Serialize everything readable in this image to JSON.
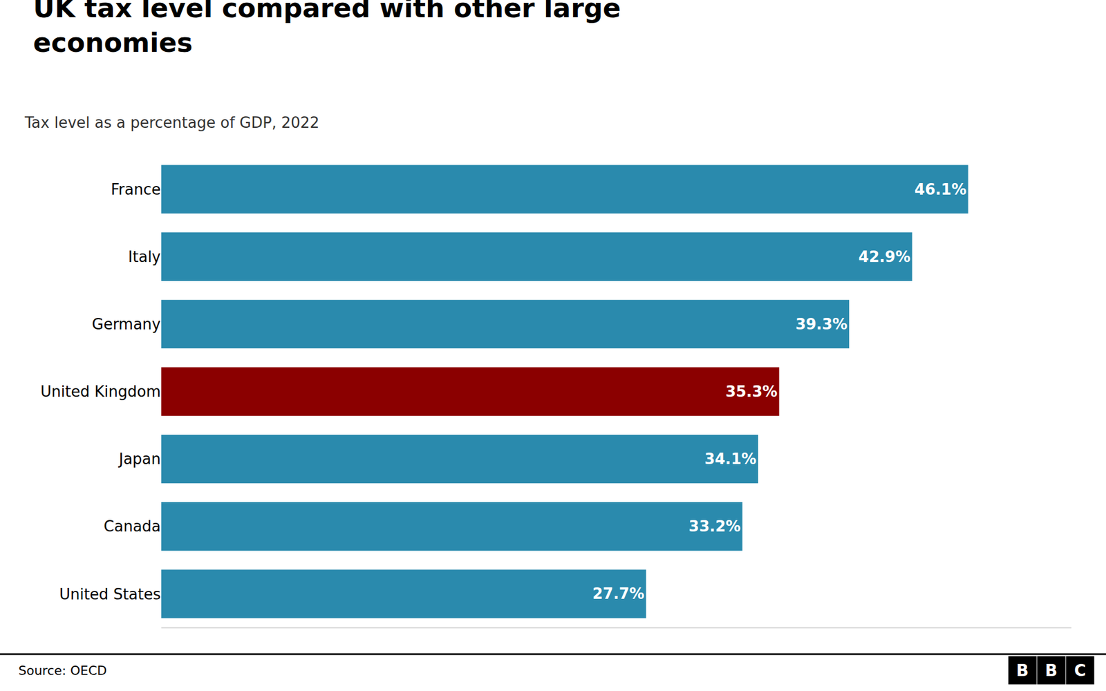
{
  "chart_data": {
    "type": "bar",
    "orientation": "horizontal",
    "title": "UK tax level compared with other large\neconomies",
    "subtitle": "Tax level as a percentage of GDP, 2022",
    "source": "Source: OECD",
    "annotations": [
      "BBC"
    ],
    "categories": [
      "France",
      "Italy",
      "Germany",
      "United Kingdom",
      "Japan",
      "Canada",
      "United States"
    ],
    "values": [
      46.1,
      42.9,
      39.3,
      35.3,
      34.1,
      33.2,
      27.7
    ],
    "value_labels": [
      "46.1%",
      "42.9%",
      "39.3%",
      "35.3%",
      "34.1%",
      "33.2%",
      "27.7%"
    ],
    "colors": [
      "#2a8aad",
      "#2a8aad",
      "#2a8aad",
      "#8b0000",
      "#2a8aad",
      "#2a8aad",
      "#2a8aad"
    ],
    "xlim": [
      0,
      52
    ],
    "data_labels": true,
    "tick_labels": "y",
    "grid": false
  }
}
